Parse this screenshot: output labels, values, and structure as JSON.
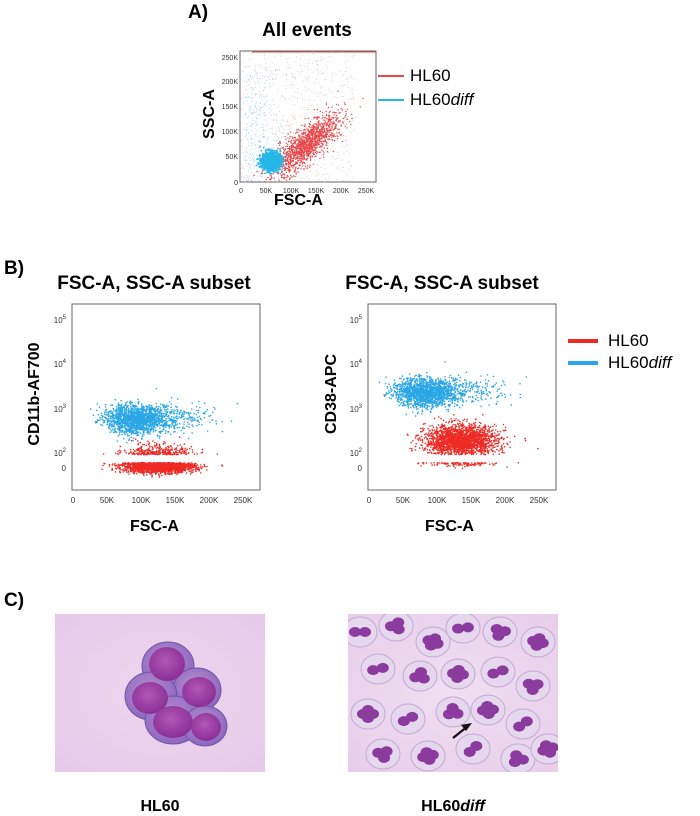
{
  "panels": {
    "a": {
      "label": "A)",
      "title": "All events",
      "xlabel": "FSC-A",
      "ylabel": "SSC-A",
      "legend": [
        {
          "text": "HL60",
          "italic_suffix": "",
          "color": "#e8474b"
        },
        {
          "text": "HL60",
          "italic_suffix": "diff",
          "color": "#27b6e8"
        }
      ]
    },
    "b": {
      "label": "B)",
      "left": {
        "title": "FSC-A, SSC-A subset",
        "xlabel": "FSC-A",
        "ylabel": "CD11b-AF700"
      },
      "right": {
        "title": "FSC-A, SSC-A subset",
        "xlabel": "FSC-A",
        "ylabel": "CD38-APC"
      },
      "legend": [
        {
          "text": "HL60",
          "italic_suffix": "",
          "color": "#ee2a24"
        },
        {
          "text": "HL60",
          "italic_suffix": "diff",
          "color": "#2ba6e6"
        }
      ]
    },
    "c": {
      "label": "C)",
      "captions": [
        {
          "text": "HL60",
          "italic_suffix": ""
        },
        {
          "text": "HL60",
          "italic_suffix": "diff"
        }
      ]
    }
  },
  "chart_data": [
    {
      "type": "scatter",
      "title": "All events",
      "xlabel": "FSC-A",
      "ylabel": "SSC-A",
      "x_ticks": [
        "0",
        "50K",
        "100K",
        "150K",
        "200K",
        "250K"
      ],
      "y_ticks": [
        "0",
        "50K",
        "100K",
        "150K",
        "200K",
        "250K"
      ],
      "xlim": [
        0,
        262144
      ],
      "ylim": [
        0,
        262144
      ],
      "series": [
        {
          "name": "HL60",
          "color": "#e8474b",
          "centroid_x": 125000,
          "centroid_y": 70000,
          "spread": "diagonal, broad"
        },
        {
          "name": "HL60diff",
          "color": "#27b6e8",
          "centroid_x": 60000,
          "centroid_y": 40000,
          "spread": "dense, low"
        }
      ]
    },
    {
      "type": "scatter",
      "title": "FSC-A, SSC-A subset",
      "xlabel": "FSC-A",
      "ylabel": "CD11b-AF700",
      "x_ticks": [
        "0",
        "50K",
        "100K",
        "150K",
        "200K",
        "250K"
      ],
      "y_ticks": [
        "0",
        "10^2",
        "10^3",
        "10^4",
        "10^5"
      ],
      "xlim": [
        0,
        262144
      ],
      "series": [
        {
          "name": "HL60",
          "color": "#ee2a24",
          "centroid_x": 120000,
          "centroid_y_decade": 1.8
        },
        {
          "name": "HL60diff",
          "color": "#2ba6e6",
          "centroid_x": 90000,
          "centroid_y_decade": 2.8
        }
      ]
    },
    {
      "type": "scatter",
      "title": "FSC-A, SSC-A subset",
      "xlabel": "FSC-A",
      "ylabel": "CD38-APC",
      "x_ticks": [
        "0",
        "50K",
        "100K",
        "150K",
        "200K",
        "250K"
      ],
      "y_ticks": [
        "0",
        "10^2",
        "10^3",
        "10^4",
        "10^5"
      ],
      "xlim": [
        0,
        262144
      ],
      "series": [
        {
          "name": "HL60",
          "color": "#ee2a24",
          "centroid_x": 130000,
          "centroid_y_decade": 2.3
        },
        {
          "name": "HL60diff",
          "color": "#2ba6e6",
          "centroid_x": 80000,
          "centroid_y_decade": 3.4
        }
      ]
    }
  ]
}
